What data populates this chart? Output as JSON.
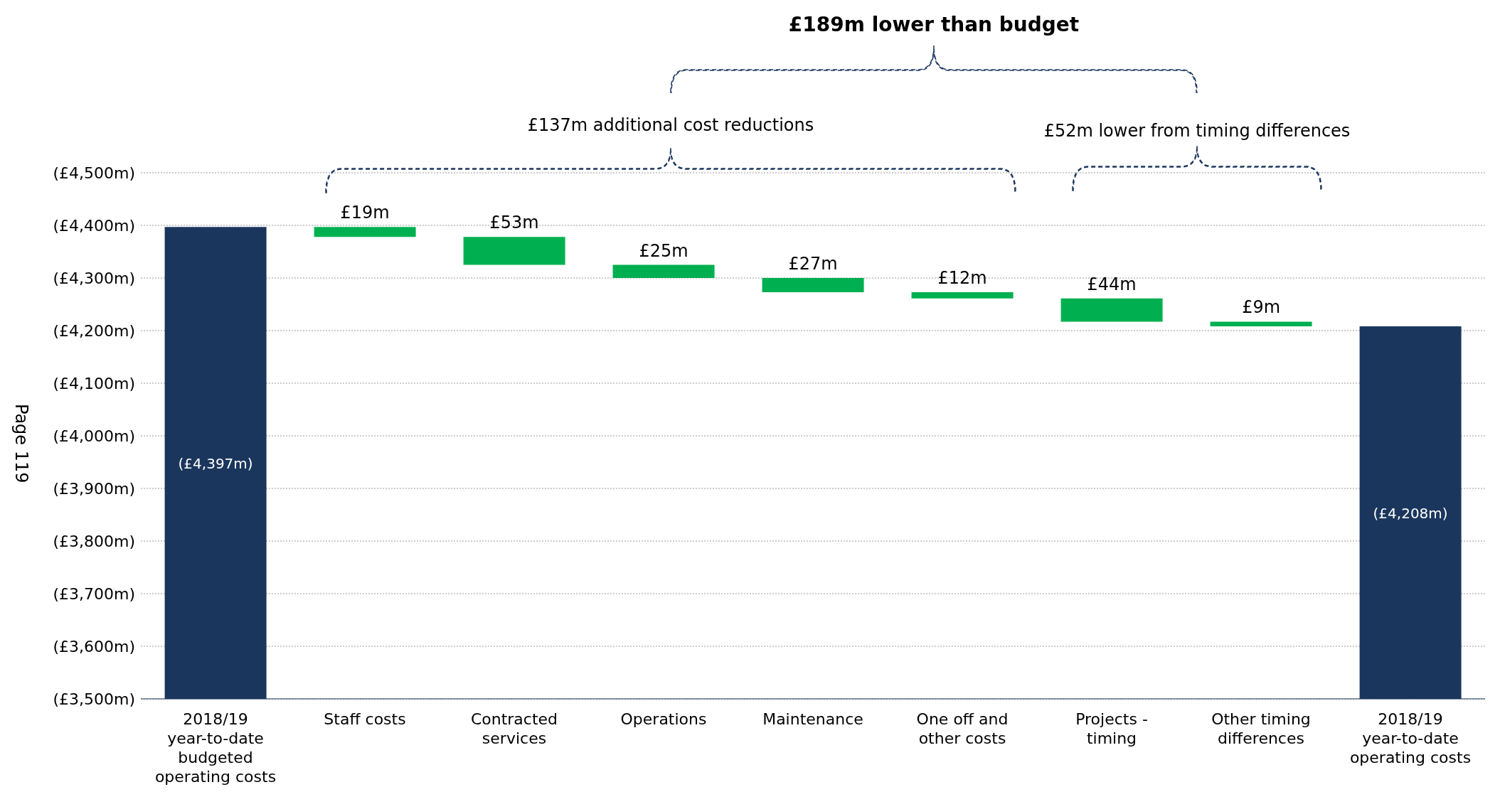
{
  "chart_data": {
    "type": "bar",
    "categories": [
      "2018/19 year-to-date budgeted operating costs",
      "Staff costs",
      "Contracted services",
      "Operations",
      "Maintenance",
      "One off and other costs",
      "Projects - timing",
      "Other timing differences",
      "2018/19 year-to-date operating costs"
    ],
    "values": [
      4397,
      19,
      53,
      25,
      27,
      12,
      44,
      9,
      4208
    ],
    "base": [
      null,
      4378,
      4325,
      4300,
      4273,
      4261,
      4217,
      4208,
      null
    ],
    "colors": [
      "#1b365d",
      "#00b050",
      "#00b050",
      "#00b050",
      "#00b050",
      "#00b050",
      "#00b050",
      "#00b050",
      "#1b365d"
    ],
    "value_labels": [
      "(£4,397m)",
      "£19m",
      "£53m",
      "£25m",
      "£27m",
      "£12m",
      "£44m",
      "£9m",
      "(£4,208m)"
    ],
    "ylim": [
      3500,
      4500
    ],
    "yticks": [
      {
        "value": 3500,
        "label": "(£3,500m)"
      },
      {
        "value": 3600,
        "label": "(£3,600m)"
      },
      {
        "value": 3700,
        "label": "(£3,700m)"
      },
      {
        "value": 3800,
        "label": "(£3,800m)"
      },
      {
        "value": 3900,
        "label": "(£3,900m)"
      },
      {
        "value": 4000,
        "label": "(£4,000m)"
      },
      {
        "value": 4100,
        "label": "(£4,100m)"
      },
      {
        "value": 4200,
        "label": "(£4,200m)"
      },
      {
        "value": 4300,
        "label": "(£4,300m)"
      },
      {
        "value": 4400,
        "label": "(£4,400m)"
      },
      {
        "value": 4500,
        "label": "(£4,500m)"
      }
    ],
    "grid": "y",
    "legend": false,
    "annotations": [
      "£189m lower than budget",
      "£137m additional cost reductions",
      "£52m lower from timing differences",
      "Page 119"
    ]
  }
}
